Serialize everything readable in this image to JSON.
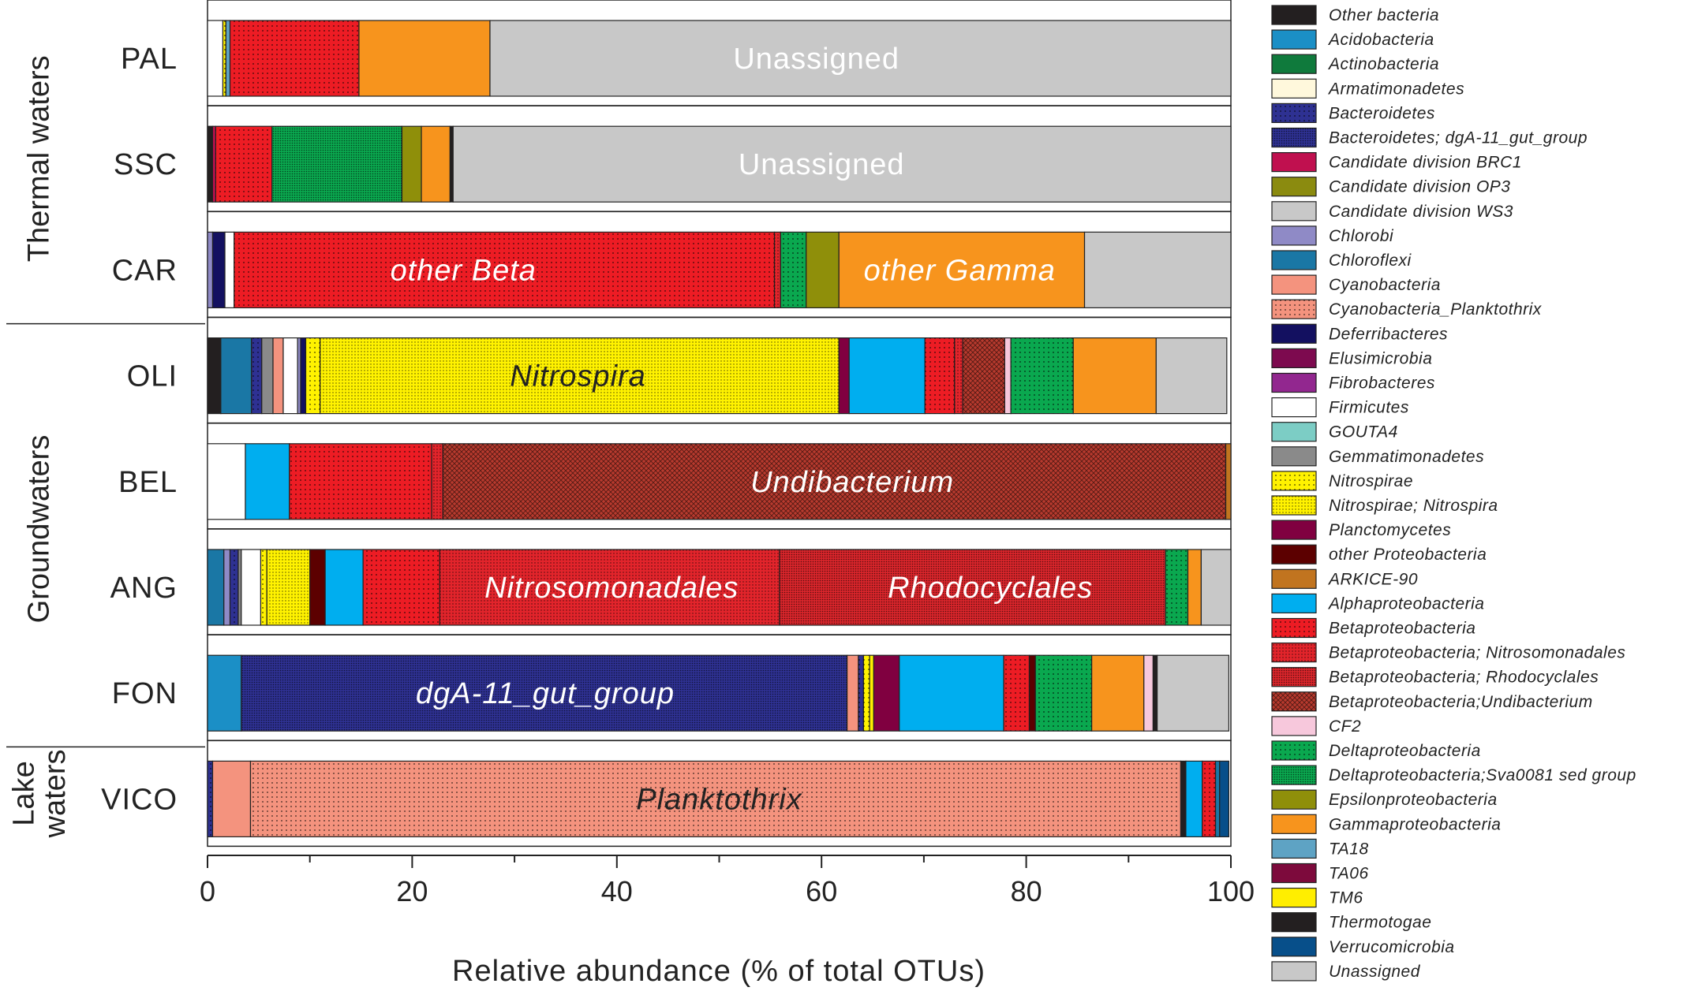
{
  "chart_data": {
    "type": "bar",
    "orientation": "horizontal",
    "stacked": true,
    "xlabel": "Relative abundance (% of total OTUs)",
    "xlim": [
      0,
      100
    ],
    "xticks": [
      "0",
      "20",
      "40",
      "60",
      "80",
      "100"
    ],
    "xtick_values": [
      0,
      20,
      40,
      60,
      80,
      100
    ],
    "groups": [
      {
        "label": "Thermal waters",
        "categories": [
          "PAL",
          "SSC",
          "CAR"
        ]
      },
      {
        "label": "Groundwaters",
        "categories": [
          "OLI",
          "BEL",
          "ANG",
          "FON"
        ]
      },
      {
        "label": "Lake waters",
        "lines": [
          "Lake",
          "waters"
        ],
        "categories": [
          "VICO"
        ]
      }
    ],
    "categories": [
      "PAL",
      "SSC",
      "CAR",
      "OLI",
      "BEL",
      "ANG",
      "FON",
      "VICO"
    ],
    "taxa": [
      {
        "name": "Other bacteria",
        "color": "#231f20",
        "pattern": "solid"
      },
      {
        "name": "Acidobacteria",
        "color": "#1b8fc6",
        "pattern": "solid"
      },
      {
        "name": "Actinobacteria",
        "color": "#0f7a3c",
        "pattern": "solid"
      },
      {
        "name": "Armatimonadetes",
        "color": "#fff8dc",
        "pattern": "solid"
      },
      {
        "name": "Bacteroidetes",
        "color": "#2e3192",
        "pattern": "dots"
      },
      {
        "name": "Bacteroidetes; dgA-11_gut_group",
        "color": "#2e3192",
        "pattern": "dense"
      },
      {
        "name": "Candidate division BRC1",
        "color": "#c0104f",
        "pattern": "solid"
      },
      {
        "name": "Candidate division OP3",
        "color": "#8b8b0f",
        "pattern": "solid"
      },
      {
        "name": "Candidate division WS3",
        "color": "#c8c8c8",
        "pattern": "solid"
      },
      {
        "name": "Chlorobi",
        "color": "#8f8ac6",
        "pattern": "solid"
      },
      {
        "name": "Chloroflexi",
        "color": "#1a77a5",
        "pattern": "solid"
      },
      {
        "name": "Cyanobacteria",
        "color": "#f4937e",
        "pattern": "solid"
      },
      {
        "name": "Cyanobacteria_Planktothrix",
        "color": "#f4937e",
        "pattern": "dots"
      },
      {
        "name": "Deferribacteres",
        "color": "#131060",
        "pattern": "solid"
      },
      {
        "name": "Elusimicrobia",
        "color": "#7d0a4f",
        "pattern": "solid"
      },
      {
        "name": "Fibrobacteres",
        "color": "#92278f",
        "pattern": "solid"
      },
      {
        "name": "Firmicutes",
        "color": "#ffffff",
        "pattern": "solid"
      },
      {
        "name": "GOUTA4",
        "color": "#7ccdc5",
        "pattern": "solid"
      },
      {
        "name": "Gemmatimonadetes",
        "color": "#8a8a8a",
        "pattern": "solid"
      },
      {
        "name": "Nitrospirae",
        "color": "#fff200",
        "pattern": "dots"
      },
      {
        "name": "Nitrospirae; Nitrospira",
        "color": "#fff200",
        "pattern": "fine"
      },
      {
        "name": "Planctomycetes",
        "color": "#800040",
        "pattern": "solid"
      },
      {
        "name": "other Proteobacteria",
        "color": "#5c0000",
        "pattern": "solid"
      },
      {
        "name": "ARKICE-90",
        "color": "#c1741f",
        "pattern": "solid"
      },
      {
        "name": "Alphaproteobacteria",
        "color": "#00aeef",
        "pattern": "solid"
      },
      {
        "name": "Betaproteobacteria",
        "color": "#ed1c24",
        "pattern": "dots"
      },
      {
        "name": "Betaproteobacteria; Nitrosomonadales",
        "color": "#e2242b",
        "pattern": "fine"
      },
      {
        "name": "Betaproteobacteria; Rhodocyclales",
        "color": "#d9252b",
        "pattern": "dense"
      },
      {
        "name": "Betaproteobacteria;Undibacterium",
        "color": "#b83a2e",
        "pattern": "cross"
      },
      {
        "name": "CF2",
        "color": "#f7c8dc",
        "pattern": "solid"
      },
      {
        "name": "Deltaproteobacteria",
        "color": "#0aa84f",
        "pattern": "dots"
      },
      {
        "name": "Deltaproteobacteria;Sva0081 sed group",
        "color": "#0aa84f",
        "pattern": "dense"
      },
      {
        "name": "Epsilonproteobacteria",
        "color": "#8f8f0a",
        "pattern": "solid"
      },
      {
        "name": "Gammaproteobacteria",
        "color": "#f7941d",
        "pattern": "solid"
      },
      {
        "name": "TA18",
        "color": "#5ea3c4",
        "pattern": "solid"
      },
      {
        "name": "TA06",
        "color": "#7d0a3c",
        "pattern": "solid"
      },
      {
        "name": "TM6",
        "color": "#ffee00",
        "pattern": "solid"
      },
      {
        "name": "Thermotogae",
        "color": "#231f20",
        "pattern": "solid"
      },
      {
        "name": "Verrucomicrobia",
        "color": "#074f8a",
        "pattern": "solid"
      },
      {
        "name": "Unassigned",
        "color": "#c8c8c8",
        "pattern": "solid"
      }
    ],
    "series": [
      {
        "category": "PAL",
        "segments": [
          [
            "Firmicutes",
            1.5
          ],
          [
            "Nitrospirae",
            0.3
          ],
          [
            "TA18",
            0.4
          ],
          [
            "Betaproteobacteria",
            12.6
          ],
          [
            "Gammaproteobacteria",
            12.8
          ],
          [
            "Unassigned",
            72.4
          ]
        ]
      },
      {
        "category": "SSC",
        "segments": [
          [
            "Other bacteria",
            0.5
          ],
          [
            "Candidate division BRC1",
            0.3
          ],
          [
            "Betaproteobacteria",
            5.5
          ],
          [
            "Deltaproteobacteria;Sva0081 sed group",
            12.7
          ],
          [
            "Epsilonproteobacteria",
            1.9
          ],
          [
            "Gammaproteobacteria",
            2.8
          ],
          [
            "Other bacteria",
            0.3
          ],
          [
            "Unassigned",
            76.0
          ]
        ]
      },
      {
        "category": "CAR",
        "segments": [
          [
            "Chlorobi",
            0.5
          ],
          [
            "Deferribacteres",
            1.2
          ],
          [
            "Firmicutes",
            0.9
          ],
          [
            "Betaproteobacteria",
            52.8
          ],
          [
            "Betaproteobacteria; Nitrosomonadales",
            0.6
          ],
          [
            "Deltaproteobacteria",
            2.5
          ],
          [
            "Epsilonproteobacteria",
            3.2
          ],
          [
            "Gammaproteobacteria",
            24.0
          ],
          [
            "Unassigned",
            14.3
          ]
        ]
      },
      {
        "category": "OLI",
        "segments": [
          [
            "Other bacteria",
            1.3
          ],
          [
            "Chloroflexi",
            3.0
          ],
          [
            "Bacteroidetes",
            1.0
          ],
          [
            "Gemmatimonadetes",
            1.1
          ],
          [
            "Cyanobacteria",
            1.0
          ],
          [
            "Firmicutes",
            1.4
          ],
          [
            "Chlorobi",
            0.3
          ],
          [
            "Deferribacteres",
            0.5
          ],
          [
            "Nitrospirae",
            1.4
          ],
          [
            "Nitrospirae; Nitrospira",
            50.7
          ],
          [
            "Planctomycetes",
            1.0
          ],
          [
            "Alphaproteobacteria",
            7.4
          ],
          [
            "Betaproteobacteria",
            2.9
          ],
          [
            "Betaproteobacteria; Nitrosomonadales",
            0.8
          ],
          [
            "Betaproteobacteria;Undibacterium",
            4.1
          ],
          [
            "CF2",
            0.6
          ],
          [
            "Deltaproteobacteria",
            6.1
          ],
          [
            "Gammaproteobacteria",
            8.1
          ],
          [
            "Unassigned",
            6.9
          ]
        ]
      },
      {
        "category": "BEL",
        "segments": [
          [
            "Firmicutes",
            3.7
          ],
          [
            "Alphaproteobacteria",
            4.3
          ],
          [
            "Betaproteobacteria",
            13.9
          ],
          [
            "Betaproteobacteria; Nitrosomonadales",
            1.1
          ],
          [
            "Betaproteobacteria;Undibacterium",
            76.5
          ],
          [
            "ARKICE-90",
            0.5
          ]
        ]
      },
      {
        "category": "ANG",
        "segments": [
          [
            "Chloroflexi",
            1.6
          ],
          [
            "Chlorobi",
            0.6
          ],
          [
            "Bacteroidetes",
            0.8
          ],
          [
            "Gemmatimonadetes",
            0.3
          ],
          [
            "Firmicutes",
            1.9
          ],
          [
            "Nitrospirae",
            0.6
          ],
          [
            "Nitrospirae; Nitrospira",
            4.2
          ],
          [
            "other Proteobacteria",
            1.5
          ],
          [
            "Alphaproteobacteria",
            3.7
          ],
          [
            "Betaproteobacteria",
            7.5
          ],
          [
            "Betaproteobacteria; Nitrosomonadales",
            33.2
          ],
          [
            "Betaproteobacteria; Rhodocyclales",
            37.7
          ],
          [
            "Deltaproteobacteria",
            2.2
          ],
          [
            "Gammaproteobacteria",
            1.3
          ],
          [
            "Unassigned",
            2.9
          ]
        ]
      },
      {
        "category": "FON",
        "segments": [
          [
            "Acidobacteria",
            3.3
          ],
          [
            "Bacteroidetes; dgA-11_gut_group",
            59.2
          ],
          [
            "Cyanobacteria",
            1.1
          ],
          [
            "Bacteroidetes",
            0.5
          ],
          [
            "Nitrospirae",
            0.6
          ],
          [
            "TM6",
            0.4
          ],
          [
            "Planctomycetes",
            2.5
          ],
          [
            "Alphaproteobacteria",
            10.2
          ],
          [
            "Betaproteobacteria",
            2.5
          ],
          [
            "other Proteobacteria",
            0.6
          ],
          [
            "Deltaproteobacteria",
            5.5
          ],
          [
            "Gammaproteobacteria",
            5.1
          ],
          [
            "CF2",
            0.9
          ],
          [
            "Other bacteria",
            0.4
          ],
          [
            "Unassigned",
            7.0
          ]
        ]
      },
      {
        "category": "VICO",
        "segments": [
          [
            "Bacteroidetes",
            0.5
          ],
          [
            "Cyanobacteria",
            3.7
          ],
          [
            "Cyanobacteria_Planktothrix",
            90.9
          ],
          [
            "Other bacteria",
            0.5
          ],
          [
            "Alphaproteobacteria",
            1.6
          ],
          [
            "Betaproteobacteria",
            1.3
          ],
          [
            "Chloroflexi",
            0.4
          ],
          [
            "Verrucomicrobia",
            0.9
          ]
        ]
      }
    ],
    "annotations": [
      {
        "category": "PAL",
        "x": 59.5,
        "text": "Unassigned",
        "color": "#ffffff"
      },
      {
        "category": "SSC",
        "x": 60.0,
        "text": "Unassigned",
        "color": "#ffffff"
      },
      {
        "category": "CAR",
        "x": 25.0,
        "text": "other Beta",
        "color": "#ffffff",
        "italic": true
      },
      {
        "category": "CAR",
        "x": 73.5,
        "text": "other Gamma",
        "color": "#ffffff",
        "italic": true
      },
      {
        "category": "OLI",
        "x": 36.2,
        "text": "Nitrospira",
        "color": "#222222",
        "italic": true
      },
      {
        "category": "BEL",
        "x": 63.0,
        "text": "Undibacterium",
        "color": "#ffffff",
        "italic": true
      },
      {
        "category": "ANG",
        "x": 39.5,
        "text": "Nitrosomonadales",
        "color": "#ffffff",
        "italic": true
      },
      {
        "category": "ANG",
        "x": 76.5,
        "text": "Rhodocyclales",
        "color": "#ffffff",
        "italic": true
      },
      {
        "category": "FON",
        "x": 33.0,
        "text": "dgA-11_gut_group",
        "color": "#ffffff",
        "italic": true
      },
      {
        "category": "VICO",
        "x": 50.0,
        "text": "Planktothrix",
        "color": "#222222",
        "italic": true
      }
    ]
  }
}
